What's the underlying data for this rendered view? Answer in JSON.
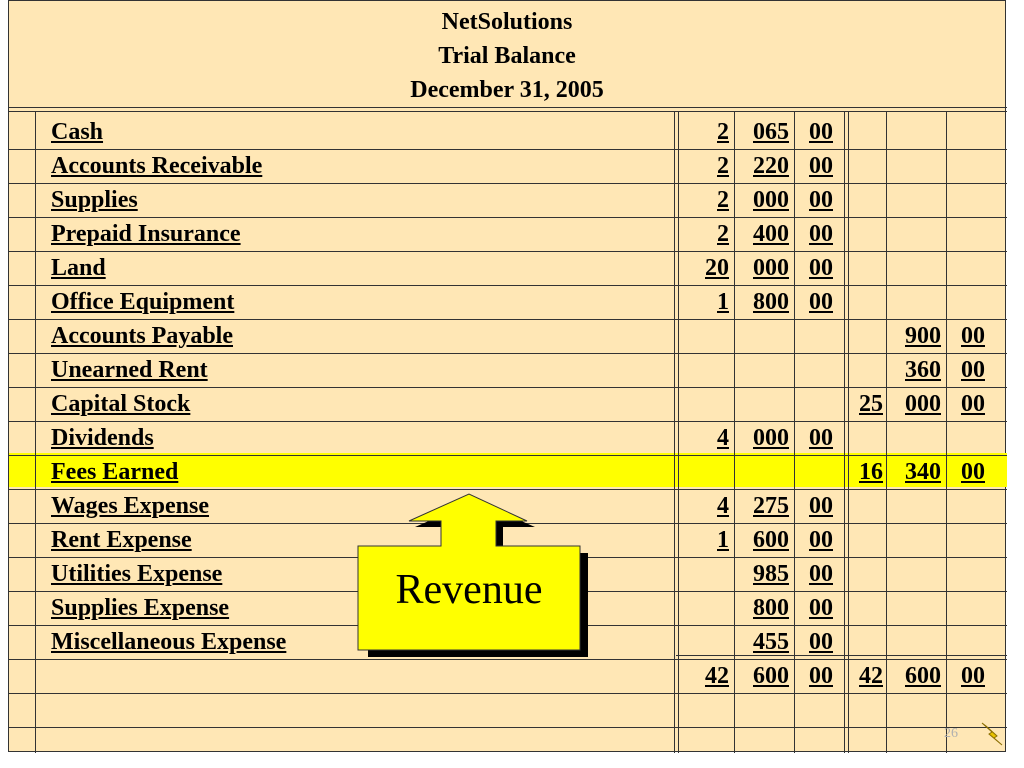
{
  "header": {
    "company": "NetSolutions",
    "title": "Trial Balance",
    "date": "December 31, 2005"
  },
  "rows": [
    {
      "name": "Cash",
      "debit": [
        "2",
        "065",
        "00"
      ],
      "credit": [
        "",
        "",
        ""
      ]
    },
    {
      "name": "Accounts Receivable",
      "debit": [
        "2",
        "220",
        "00"
      ],
      "credit": [
        "",
        "",
        ""
      ]
    },
    {
      "name": "Supplies",
      "debit": [
        "2",
        "000",
        "00"
      ],
      "credit": [
        "",
        "",
        ""
      ]
    },
    {
      "name": "Prepaid Insurance",
      "debit": [
        "2",
        "400",
        "00"
      ],
      "credit": [
        "",
        "",
        ""
      ]
    },
    {
      "name": "Land",
      "debit": [
        "20",
        "000",
        "00"
      ],
      "credit": [
        "",
        "",
        ""
      ]
    },
    {
      "name": "Office Equipment",
      "debit": [
        "1",
        "800",
        "00"
      ],
      "credit": [
        "",
        "",
        ""
      ]
    },
    {
      "name": "Accounts Payable",
      "debit": [
        "",
        "",
        ""
      ],
      "credit": [
        "",
        "900",
        "00"
      ]
    },
    {
      "name": "Unearned Rent",
      "debit": [
        "",
        "",
        ""
      ],
      "credit": [
        "",
        "360",
        "00"
      ]
    },
    {
      "name": "Capital Stock",
      "debit": [
        "",
        "",
        ""
      ],
      "credit": [
        "25",
        "000",
        "00"
      ]
    },
    {
      "name": "Dividends",
      "debit": [
        "4",
        "000",
        "00"
      ],
      "credit": [
        "",
        "",
        ""
      ]
    },
    {
      "name": "Fees Earned",
      "debit": [
        "",
        "",
        ""
      ],
      "credit": [
        "16",
        "340",
        "00"
      ],
      "highlight": true
    },
    {
      "name": "Wages Expense",
      "debit": [
        "4",
        "275",
        "00"
      ],
      "credit": [
        "",
        "",
        ""
      ]
    },
    {
      "name": "Rent Expense",
      "debit": [
        "1",
        "600",
        "00"
      ],
      "credit": [
        "",
        "",
        ""
      ]
    },
    {
      "name": "Utilities Expense",
      "debit": [
        "",
        "985",
        "00"
      ],
      "credit": [
        "",
        "",
        ""
      ]
    },
    {
      "name": "Supplies Expense",
      "debit": [
        "",
        "800",
        "00"
      ],
      "credit": [
        "",
        "",
        ""
      ]
    },
    {
      "name": "Miscellaneous Expense",
      "debit": [
        "",
        "455",
        "00"
      ],
      "credit": [
        "",
        "",
        ""
      ]
    }
  ],
  "totals": {
    "debit": [
      "42",
      "600",
      "00"
    ],
    "credit": [
      "42",
      "600",
      "00"
    ]
  },
  "callout": {
    "label": "Revenue"
  },
  "page_number": "26",
  "colors": {
    "paper": "#ffe7b5",
    "highlight": "#ffff00",
    "callout": "#ffff00"
  }
}
